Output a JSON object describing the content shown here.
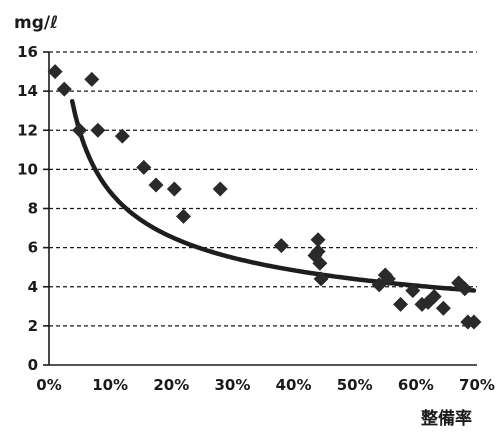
{
  "chart_data": {
    "type": "scatter",
    "title": "",
    "ylabel": "mg/ℓ",
    "xlabel": "整備率",
    "xlim": [
      0,
      70
    ],
    "ylim": [
      0,
      16
    ],
    "x_ticks": [
      "0%",
      "10%",
      "20%",
      "30%",
      "40%",
      "50%",
      "60%",
      "70%"
    ],
    "y_ticks": [
      "0",
      "2",
      "4",
      "6",
      "8",
      "10",
      "12",
      "14",
      "16"
    ],
    "grid": "horizontal dashed",
    "series": [
      {
        "marker": "diamond",
        "color": "#2a2a2a",
        "points": [
          [
            1.0,
            15.0
          ],
          [
            2.5,
            14.1
          ],
          [
            5.0,
            12.0
          ],
          [
            7.0,
            14.6
          ],
          [
            8.0,
            12.0
          ],
          [
            12.0,
            11.7
          ],
          [
            15.5,
            10.1
          ],
          [
            17.5,
            9.2
          ],
          [
            20.5,
            9.0
          ],
          [
            22.0,
            7.6
          ],
          [
            28.0,
            9.0
          ],
          [
            38.0,
            6.1
          ],
          [
            43.5,
            5.6
          ],
          [
            44.0,
            6.4
          ],
          [
            44.0,
            5.8
          ],
          [
            44.3,
            5.2
          ],
          [
            44.5,
            4.4
          ],
          [
            54.0,
            4.1
          ],
          [
            55.0,
            4.6
          ],
          [
            55.5,
            4.4
          ],
          [
            57.5,
            3.1
          ],
          [
            59.5,
            3.8
          ],
          [
            61.0,
            3.1
          ],
          [
            62.0,
            3.2
          ],
          [
            63.0,
            3.5
          ],
          [
            64.5,
            2.9
          ],
          [
            67.0,
            4.2
          ],
          [
            68.0,
            3.9
          ],
          [
            68.5,
            2.2
          ],
          [
            69.5,
            2.2
          ]
        ]
      }
    ],
    "trendline": {
      "type": "power",
      "a": 24.1,
      "b": -0.435,
      "x_start": 3.8,
      "x_end": 69.5,
      "color": "#1e1e1e"
    }
  }
}
